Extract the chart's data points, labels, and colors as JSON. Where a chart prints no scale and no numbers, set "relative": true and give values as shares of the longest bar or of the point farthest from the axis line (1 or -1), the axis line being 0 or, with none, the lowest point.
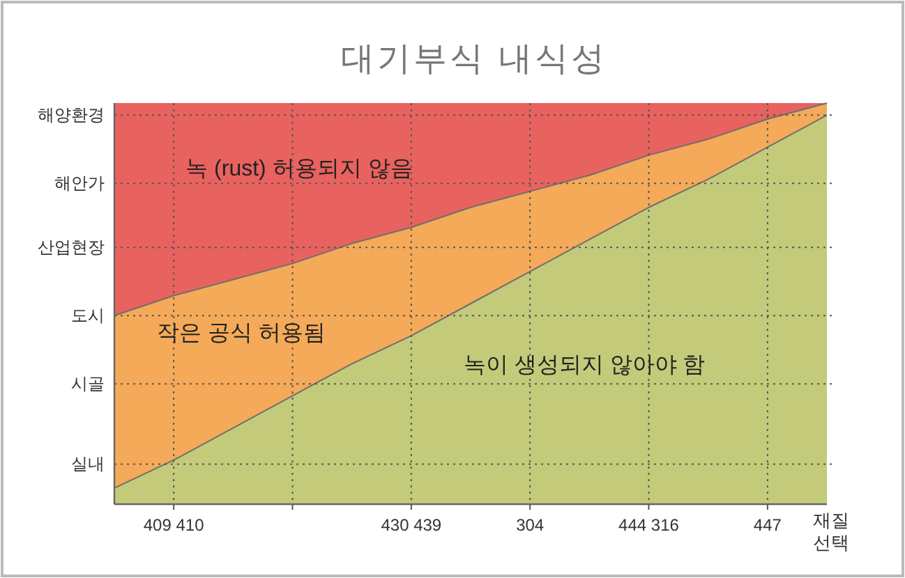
{
  "chart_data": {
    "type": "area",
    "title": "대기부식 내식성",
    "xlabel": "재질 선택",
    "stacked": true,
    "relative": true,
    "grid": "x",
    "categories": [
      null,
      "409 410",
      null,
      null,
      null,
      "430 439",
      null,
      "304",
      null,
      "444 316",
      null,
      "447",
      null
    ],
    "series": [
      {
        "name": "녹이 생성되지 않아야 함",
        "color": "#c3cb7a",
        "values": [
          0.04,
          0.11,
          0.19,
          0.27,
          0.35,
          0.42,
          0.5,
          0.58,
          0.66,
          0.74,
          0.81,
          0.89,
          0.97
        ]
      },
      {
        "name": "작은 공식 허용됨",
        "color": "#f4aa58",
        "values": [
          0.43,
          0.41,
          0.37,
          0.33,
          0.3,
          0.27,
          0.24,
          0.2,
          0.16,
          0.13,
          0.1,
          0.07,
          0.03
        ]
      },
      {
        "name": "녹 (rust) 허용되지 않음",
        "color": "#e8625f",
        "values": [
          0.53,
          0.48,
          0.44,
          0.4,
          0.35,
          0.31,
          0.26,
          0.22,
          0.18,
          0.13,
          0.09,
          0.04,
          0.0
        ]
      }
    ],
    "ref_lines": [
      {
        "axis": "y",
        "value": 0.1,
        "label": "실내",
        "line_style": "dotted"
      },
      {
        "axis": "y",
        "value": 0.3,
        "label": "시골",
        "line_style": "dotted"
      },
      {
        "axis": "y",
        "value": 0.47,
        "label": "도시",
        "line_style": "dotted"
      },
      {
        "axis": "y",
        "value": 0.64,
        "label": "산업현장",
        "line_style": "dotted"
      },
      {
        "axis": "y",
        "value": 0.8,
        "label": "해안가",
        "line_style": "dotted"
      },
      {
        "axis": "y",
        "value": 0.97,
        "label": "해양환경",
        "line_style": "dotted"
      }
    ]
  }
}
